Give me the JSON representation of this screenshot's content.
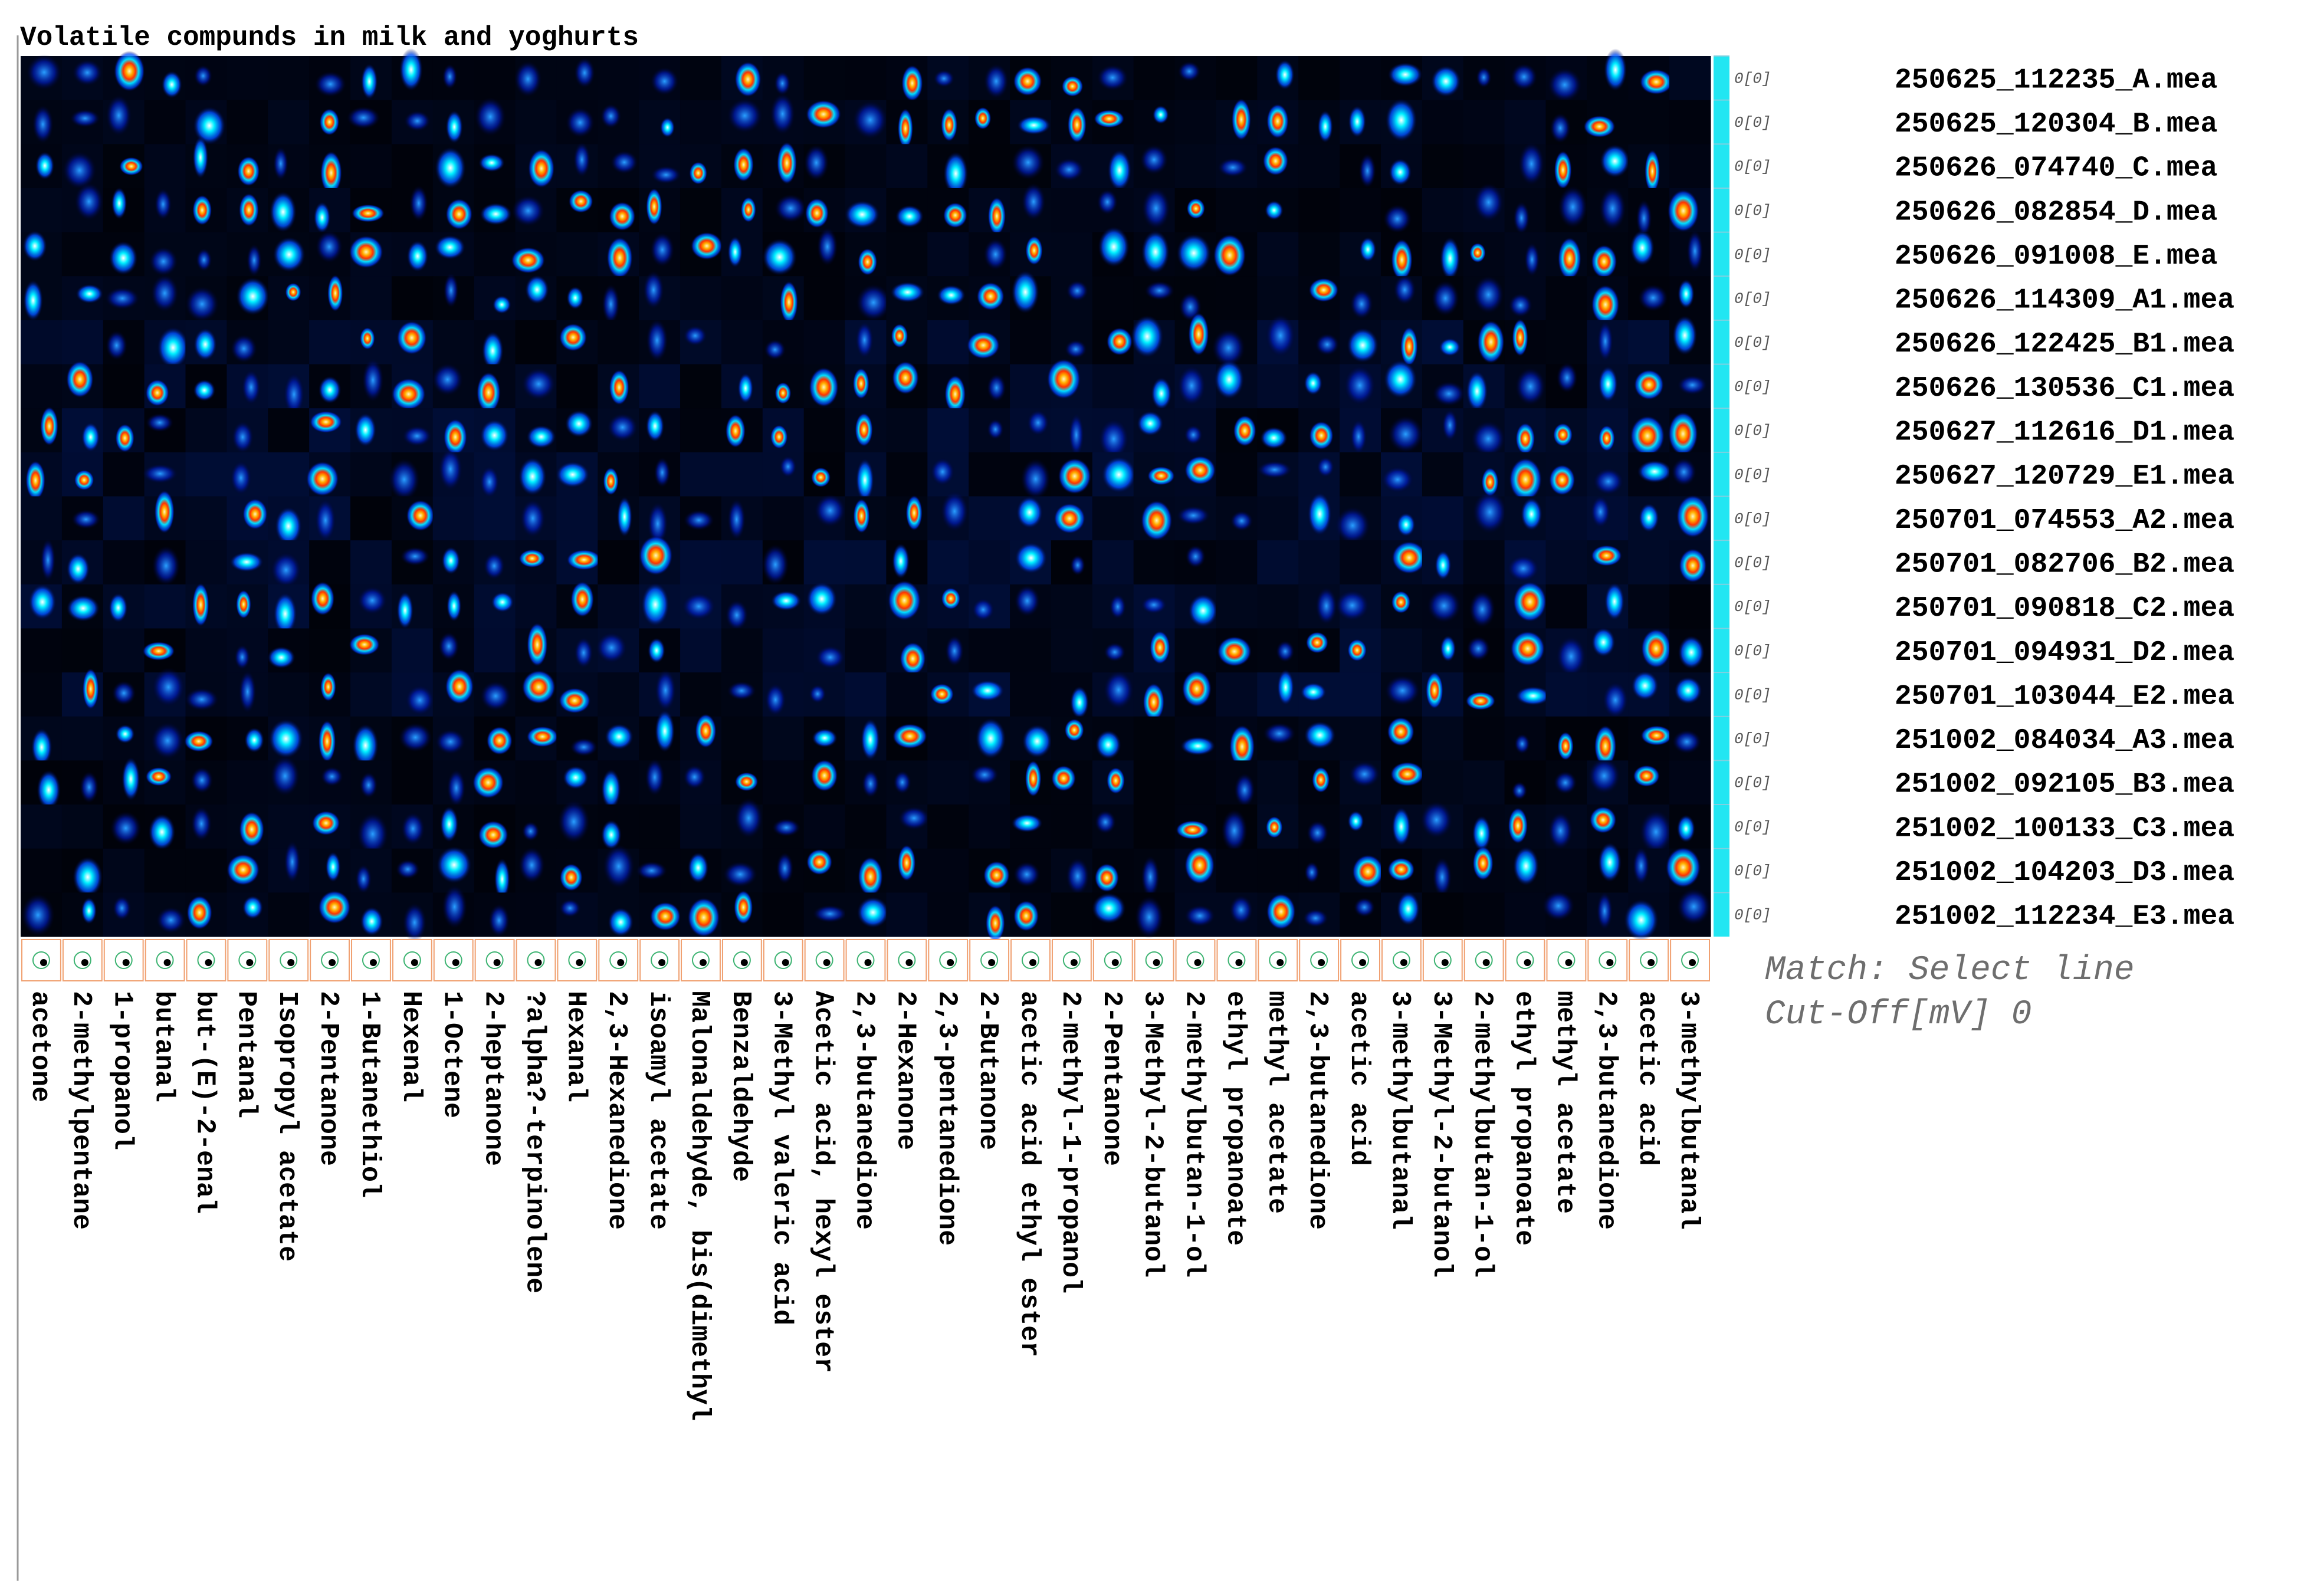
{
  "title": "Volatile compunds in milk and yoghurts",
  "columns": [
    "acetone",
    "2-methylpentane",
    "1-propanol",
    "butanal",
    "but-(E)-2-enal",
    "Pentanal",
    "Isopropyl acetate",
    "2-Pentanone",
    "1-Butanethiol",
    "Hexenal",
    "1-Octene",
    "2-heptanone",
    "?alpha?-terpinolene",
    "Hexanal",
    "2,3-Hexanedione",
    "isoamyl acetate",
    "Malonaldehyde, bis(dimethyl",
    "Benzaldehyde",
    "3-Methyl valeric acid",
    "Acetic acid, hexyl ester",
    "2,3-butanedione",
    "2-Hexanone",
    "2,3-pentanedione",
    "2-Butanone",
    "acetic acid ethyl ester",
    "2-methyl-1-propanol",
    "2-Pentanone",
    "3-Methyl-2-butanol",
    "2-methylbutan-1-ol",
    "ethyl propanoate",
    "methyl acetate",
    "2,3-butanedione",
    "acetic acid",
    "3-methylbutanal",
    "3-Methyl-2-butanol",
    "2-methylbutan-1-ol",
    "ethyl propanoate",
    "methyl acetate",
    "2,3-butanedione",
    "acetic acid",
    "3-methylbutanal"
  ],
  "rows": [
    {
      "tag": "0[0]",
      "name": "250625_112235_A.mea"
    },
    {
      "tag": "0[0]",
      "name": "250625_120304_B.mea"
    },
    {
      "tag": "0[0]",
      "name": "250626_074740_C.mea"
    },
    {
      "tag": "0[0]",
      "name": "250626_082854_D.mea"
    },
    {
      "tag": "0[0]",
      "name": "250626_091008_E.mea"
    },
    {
      "tag": "0[0]",
      "name": "250626_114309_A1.mea"
    },
    {
      "tag": "0[0]",
      "name": "250626_122425_B1.mea"
    },
    {
      "tag": "0[0]",
      "name": "250626_130536_C1.mea"
    },
    {
      "tag": "0[0]",
      "name": "250627_112616_D1.mea"
    },
    {
      "tag": "0[0]",
      "name": "250627_120729_E1.mea"
    },
    {
      "tag": "0[0]",
      "name": "250701_074553_A2.mea"
    },
    {
      "tag": "0[0]",
      "name": "250701_082706_B2.mea"
    },
    {
      "tag": "0[0]",
      "name": "250701_090818_C2.mea"
    },
    {
      "tag": "0[0]",
      "name": "250701_094931_D2.mea"
    },
    {
      "tag": "0[0]",
      "name": "250701_103044_E2.mea"
    },
    {
      "tag": "0[0]",
      "name": "251002_084034_A3.mea"
    },
    {
      "tag": "0[0]",
      "name": "251002_092105_B3.mea"
    },
    {
      "tag": "0[0]",
      "name": "251002_100133_C3.mea"
    },
    {
      "tag": "0[0]",
      "name": "251002_104203_D3.mea"
    },
    {
      "tag": "0[0]",
      "name": "251002_112234_E3.mea"
    }
  ],
  "match": "Match: Select line",
  "cutoff": "Cut-Off[mV] 0"
}
